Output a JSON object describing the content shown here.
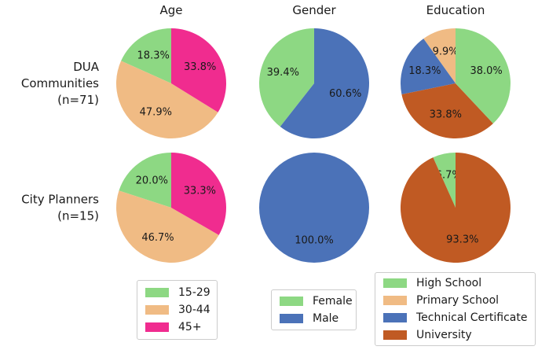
{
  "chart_data": {
    "type": "pie",
    "column_titles": [
      "Age",
      "Gender",
      "Education"
    ],
    "row_labels": [
      [
        "DUA",
        "Communities",
        "(n=71)"
      ],
      [
        "City Planners",
        "(n=15)"
      ]
    ],
    "colors": {
      "15-29": "#8dd883",
      "30-44": "#f0bb84",
      "45+": "#f02c8f",
      "Female": "#8dd883",
      "Male": "#4b72b8",
      "High School": "#8dd883",
      "Primary School": "#f0bb84",
      "Technical Certificate": "#4b72b8",
      "University": "#c05a23"
    },
    "pies": [
      {
        "row": 0,
        "col": 0,
        "slices": [
          {
            "label": "15-29",
            "value": 18.3,
            "text": "18.3%"
          },
          {
            "label": "30-44",
            "value": 47.9,
            "text": "47.9%"
          },
          {
            "label": "45+",
            "value": 33.8,
            "text": "33.8%"
          }
        ]
      },
      {
        "row": 0,
        "col": 1,
        "slices": [
          {
            "label": "Female",
            "value": 39.4,
            "text": "39.4%"
          },
          {
            "label": "Male",
            "value": 60.6,
            "text": "60.6%"
          }
        ]
      },
      {
        "row": 0,
        "col": 2,
        "slices": [
          {
            "label": "Primary School",
            "value": 9.9,
            "text": "9.9%"
          },
          {
            "label": "Technical Certificate",
            "value": 18.3,
            "text": "18.3%"
          },
          {
            "label": "University",
            "value": 33.8,
            "text": "33.8%"
          },
          {
            "label": "High School",
            "value": 38.0,
            "text": "38.0%"
          }
        ]
      },
      {
        "row": 1,
        "col": 0,
        "slices": [
          {
            "label": "15-29",
            "value": 20.0,
            "text": "20.0%"
          },
          {
            "label": "30-44",
            "value": 46.7,
            "text": "46.7%"
          },
          {
            "label": "45+",
            "value": 33.3,
            "text": "33.3%"
          }
        ]
      },
      {
        "row": 1,
        "col": 1,
        "slices": [
          {
            "label": "Male",
            "value": 100.0,
            "text": "100.0%"
          }
        ]
      },
      {
        "row": 1,
        "col": 2,
        "slices": [
          {
            "label": "High School",
            "value": 6.7,
            "text": "6.7%"
          },
          {
            "label": "University",
            "value": 93.3,
            "text": "93.3%"
          }
        ]
      }
    ],
    "legends": [
      {
        "name": "age",
        "items": [
          "15-29",
          "30-44",
          "45+"
        ]
      },
      {
        "name": "gender",
        "items": [
          "Female",
          "Male"
        ]
      },
      {
        "name": "education",
        "items": [
          "High School",
          "Primary School",
          "Technical Certificate",
          "University"
        ]
      }
    ]
  }
}
